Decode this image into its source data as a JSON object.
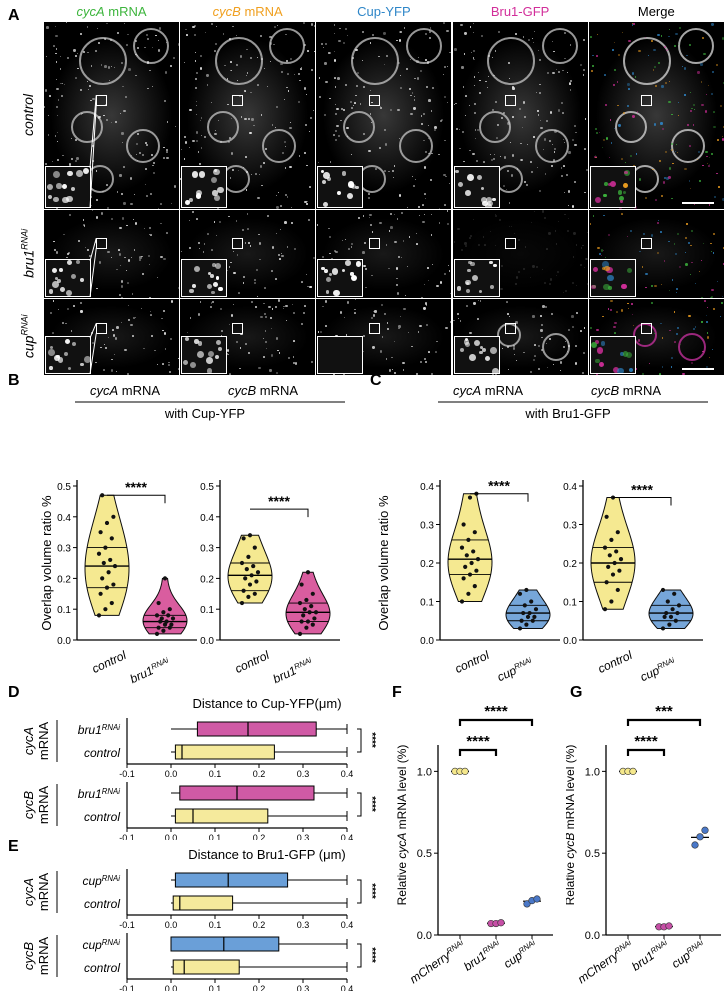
{
  "panel_letters": {
    "A": "A",
    "B": "B",
    "C": "C",
    "D": "D",
    "E": "E",
    "F": "F",
    "G": "G"
  },
  "panel_a": {
    "columns": [
      {
        "gene": "cycA",
        "suffix": " mRNA",
        "color": "#3db53d",
        "italic": true
      },
      {
        "gene": "cycB",
        "suffix": " mRNA",
        "color": "#f0a020",
        "italic": true
      },
      {
        "gene": "Cup-YFP",
        "suffix": "",
        "color": "#2e86c8",
        "italic": false
      },
      {
        "gene": "Bru1-GFP",
        "suffix": "",
        "color": "#d22e9a",
        "italic": false
      },
      {
        "gene": "Merge",
        "suffix": "",
        "color": "#000000",
        "italic": false
      }
    ],
    "rows": [
      {
        "base": "control",
        "sup": ""
      },
      {
        "base": "bru1",
        "sup": "RNAi"
      },
      {
        "base": "cup",
        "sup": "RNAi"
      }
    ]
  },
  "chart_data": [
    {
      "panel": "B",
      "type": "violin",
      "header_labels": [
        "cycA mRNA",
        "cycB mRNA"
      ],
      "subheader": "with Cup-YFP",
      "ylabel": "Overlap volume ratio %",
      "ylim": [
        0,
        0.5
      ],
      "yticks": [
        "0.0",
        "0.1",
        "0.2",
        "0.3",
        "0.4",
        "0.5"
      ],
      "significance": [
        "****",
        "****"
      ],
      "groups": [
        {
          "mrna": "cycA",
          "categories": [
            "control",
            "bru1 RNAi"
          ],
          "colors": [
            "#f5e88c",
            "#d8559a"
          ],
          "values": [
            [
              0.08,
              0.1,
              0.12,
              0.15,
              0.18,
              0.2,
              0.22,
              0.24,
              0.26,
              0.28,
              0.3,
              0.33,
              0.35,
              0.38,
              0.4,
              0.47,
              0.25,
              0.17
            ],
            [
              0.02,
              0.03,
              0.04,
              0.05,
              0.06,
              0.07,
              0.08,
              0.09,
              0.1,
              0.12,
              0.06,
              0.07,
              0.05,
              0.08,
              0.2,
              0.04
            ]
          ]
        },
        {
          "mrna": "cycB",
          "categories": [
            "control",
            "bru1 RNAi"
          ],
          "colors": [
            "#f5e88c",
            "#d8559a"
          ],
          "values": [
            [
              0.12,
              0.14,
              0.16,
              0.18,
              0.19,
              0.2,
              0.21,
              0.22,
              0.23,
              0.25,
              0.27,
              0.3,
              0.33,
              0.34,
              0.15,
              0.24
            ],
            [
              0.02,
              0.04,
              0.05,
              0.06,
              0.07,
              0.08,
              0.09,
              0.1,
              0.11,
              0.12,
              0.13,
              0.15,
              0.18,
              0.22,
              0.06,
              0.09
            ]
          ]
        }
      ]
    },
    {
      "panel": "C",
      "type": "violin",
      "header_labels": [
        "cycA mRNA",
        "cycB mRNA"
      ],
      "subheader": "with Bru1-GFP",
      "ylabel": "Overlap volume ratio %",
      "ylim": [
        0,
        0.4
      ],
      "yticks": [
        "0.0",
        "0.1",
        "0.2",
        "0.3",
        "0.4"
      ],
      "significance": [
        "****",
        "****"
      ],
      "groups": [
        {
          "mrna": "cycA",
          "categories": [
            "control",
            "cup RNAi"
          ],
          "colors": [
            "#f5e88c",
            "#6fa2d8"
          ],
          "values": [
            [
              0.1,
              0.12,
              0.14,
              0.16,
              0.18,
              0.19,
              0.2,
              0.21,
              0.22,
              0.24,
              0.26,
              0.28,
              0.3,
              0.37,
              0.38,
              0.17,
              0.23
            ],
            [
              0.03,
              0.04,
              0.05,
              0.06,
              0.07,
              0.08,
              0.09,
              0.1,
              0.12,
              0.13,
              0.06,
              0.05,
              0.07
            ]
          ]
        },
        {
          "mrna": "cycB",
          "categories": [
            "control",
            "cup RNAi"
          ],
          "colors": [
            "#f5e88c",
            "#6fa2d8"
          ],
          "values": [
            [
              0.08,
              0.1,
              0.13,
              0.15,
              0.17,
              0.19,
              0.2,
              0.21,
              0.22,
              0.24,
              0.26,
              0.28,
              0.32,
              0.37,
              0.18,
              0.23
            ],
            [
              0.03,
              0.04,
              0.05,
              0.06,
              0.07,
              0.08,
              0.09,
              0.1,
              0.12,
              0.13,
              0.07,
              0.06
            ]
          ]
        }
      ]
    },
    {
      "panel": "D",
      "type": "boxplot",
      "title": "Distance to Cup-YFP(μm)",
      "xlim": [
        -0.1,
        0.4
      ],
      "xticks": [
        "-0.1",
        "0.0",
        "0.1",
        "0.2",
        "0.3",
        "0.4"
      ],
      "groups": [
        {
          "mrna": [
            "cycA",
            "mRNA"
          ],
          "significance": "****",
          "boxes": [
            {
              "label": "bru1",
              "sup": "RNAi",
              "color": "#d05aa5",
              "min": 0.0,
              "q1": 0.06,
              "median": 0.175,
              "q3": 0.33,
              "max": 0.4
            },
            {
              "label": "control",
              "sup": "",
              "color": "#f5ea9c",
              "min": 0.0,
              "q1": 0.01,
              "median": 0.025,
              "q3": 0.235,
              "max": 0.4
            }
          ]
        },
        {
          "mrna": [
            "cycB",
            "mRNA"
          ],
          "significance": "****",
          "boxes": [
            {
              "label": "bru1",
              "sup": "RNAi",
              "color": "#d05aa5",
              "min": 0.0,
              "q1": 0.02,
              "median": 0.15,
              "q3": 0.325,
              "max": 0.4
            },
            {
              "label": "control",
              "sup": "",
              "color": "#f5ea9c",
              "min": 0.0,
              "q1": 0.01,
              "median": 0.05,
              "q3": 0.22,
              "max": 0.4
            }
          ]
        }
      ]
    },
    {
      "panel": "E",
      "type": "boxplot",
      "title": "Distance to Bru1-GFP (μm)",
      "xlim": [
        -0.1,
        0.4
      ],
      "xticks": [
        "-0.1",
        "0.0",
        "0.1",
        "0.2",
        "0.3",
        "0.4"
      ],
      "groups": [
        {
          "mrna": [
            "cycA",
            "mRNA"
          ],
          "significance": "****",
          "boxes": [
            {
              "label": "cup",
              "sup": "RNAi",
              "color": "#6a9fd8",
              "min": 0.0,
              "q1": 0.01,
              "median": 0.13,
              "q3": 0.265,
              "max": 0.4
            },
            {
              "label": "control",
              "sup": "",
              "color": "#f5ea9c",
              "min": 0.0,
              "q1": 0.005,
              "median": 0.02,
              "q3": 0.14,
              "max": 0.4
            }
          ]
        },
        {
          "mrna": [
            "cycB",
            "mRNA"
          ],
          "significance": "****",
          "boxes": [
            {
              "label": "cup",
              "sup": "RNAi",
              "color": "#6a9fd8",
              "min": 0.0,
              "q1": 0.0,
              "median": 0.12,
              "q3": 0.245,
              "max": 0.4
            },
            {
              "label": "control",
              "sup": "",
              "color": "#f5ea9c",
              "min": 0.0,
              "q1": 0.005,
              "median": 0.03,
              "q3": 0.155,
              "max": 0.4
            }
          ]
        }
      ]
    },
    {
      "panel": "F",
      "type": "scatter",
      "ylabel_pre": "Relative ",
      "ylabel_gene": "cycA",
      "ylabel_post": " mRNA level (%)",
      "ylim": [
        0,
        1.1
      ],
      "yticks": [
        "0.0",
        "0.5",
        "1.0"
      ],
      "categories": [
        {
          "base": "mCherry",
          "sup": "RNAi"
        },
        {
          "base": "bru1",
          "sup": "RNAi"
        },
        {
          "base": "cup",
          "sup": "RNAi"
        }
      ],
      "colors": [
        "#f5e88c",
        "#c64fa6",
        "#4a78c8"
      ],
      "values": [
        [
          1.0,
          1.0,
          1.0
        ],
        [
          0.07,
          0.07,
          0.075
        ],
        [
          0.19,
          0.21,
          0.22
        ]
      ],
      "brackets": [
        {
          "from": 0,
          "to": 1,
          "label": "****"
        },
        {
          "from": 0,
          "to": 2,
          "label": "****"
        }
      ]
    },
    {
      "panel": "G",
      "type": "scatter",
      "ylabel_pre": "Relative ",
      "ylabel_gene": "cycB",
      "ylabel_post": " mRNA level (%)",
      "ylim": [
        0,
        1.1
      ],
      "yticks": [
        "0.0",
        "0.5",
        "1.0"
      ],
      "categories": [
        {
          "base": "mCherry",
          "sup": "RNAi"
        },
        {
          "base": "bru1",
          "sup": "RNAi"
        },
        {
          "base": "cup",
          "sup": "RNAi"
        }
      ],
      "colors": [
        "#f5e88c",
        "#c64fa6",
        "#4a78c8"
      ],
      "values": [
        [
          1.0,
          1.0,
          1.0
        ],
        [
          0.05,
          0.05,
          0.055
        ],
        [
          0.55,
          0.6,
          0.64
        ]
      ],
      "brackets": [
        {
          "from": 0,
          "to": 1,
          "label": "****"
        },
        {
          "from": 0,
          "to": 2,
          "label": "***"
        }
      ]
    }
  ]
}
